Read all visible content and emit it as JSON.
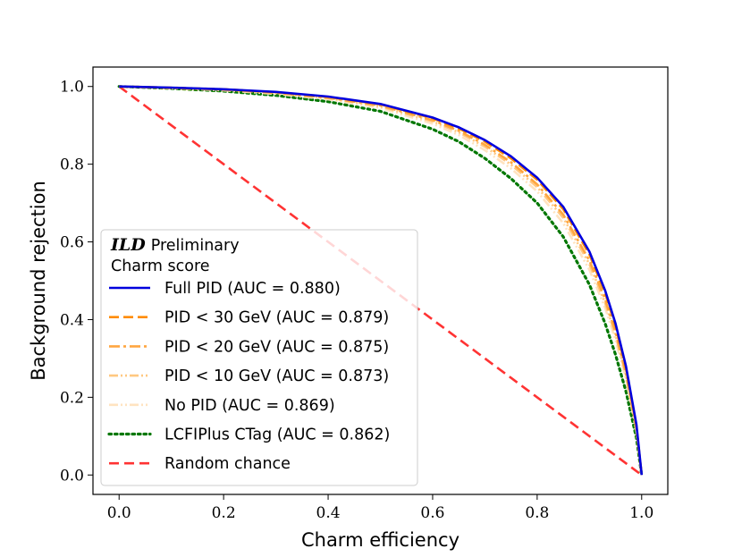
{
  "chart_data": {
    "type": "line",
    "xlabel": "Charm efficiency",
    "ylabel": "Background rejection",
    "xlim": [
      -0.05,
      1.05
    ],
    "ylim": [
      -0.05,
      1.05
    ],
    "xticks": [
      "0.0",
      "0.2",
      "0.4",
      "0.6",
      "0.8",
      "1.0"
    ],
    "yticks": [
      "0.0",
      "0.2",
      "0.4",
      "0.6",
      "0.8",
      "1.0"
    ],
    "legend": {
      "position": "lower-left",
      "title_main": "ILD",
      "title_suffix": "Preliminary",
      "subtitle": "Charm score"
    },
    "x": [
      0.0,
      0.1,
      0.2,
      0.3,
      0.4,
      0.5,
      0.6,
      0.65,
      0.7,
      0.75,
      0.8,
      0.85,
      0.9,
      0.93,
      0.95,
      0.97,
      0.99,
      1.0
    ],
    "series": [
      {
        "name": "Full PID (AUC = 0.880)",
        "color": "#0000dd",
        "style": "solid",
        "y": [
          1.0,
          0.997,
          0.993,
          0.986,
          0.974,
          0.955,
          0.92,
          0.895,
          0.862,
          0.82,
          0.765,
          0.69,
          0.575,
          0.475,
          0.39,
          0.28,
          0.13,
          0.0
        ]
      },
      {
        "name": "PID < 30 GeV (AUC = 0.879)",
        "color": "#ff8c00",
        "style": "dashed",
        "y": [
          1.0,
          0.997,
          0.993,
          0.985,
          0.973,
          0.954,
          0.918,
          0.892,
          0.858,
          0.815,
          0.76,
          0.684,
          0.568,
          0.468,
          0.383,
          0.273,
          0.125,
          0.0
        ]
      },
      {
        "name": "PID < 20 GeV (AUC = 0.875)",
        "color": "#ffa640",
        "style": "dashdot",
        "y": [
          1.0,
          0.996,
          0.992,
          0.984,
          0.971,
          0.951,
          0.913,
          0.886,
          0.85,
          0.805,
          0.748,
          0.67,
          0.552,
          0.452,
          0.368,
          0.262,
          0.12,
          0.0
        ]
      },
      {
        "name": "PID < 10 GeV (AUC = 0.873)",
        "color": "#ffc880",
        "style": "dashdotdot",
        "y": [
          1.0,
          0.996,
          0.991,
          0.983,
          0.97,
          0.949,
          0.91,
          0.882,
          0.845,
          0.799,
          0.741,
          0.662,
          0.543,
          0.443,
          0.36,
          0.256,
          0.117,
          0.0
        ]
      },
      {
        "name": "No PID (AUC = 0.869)",
        "color": "#ffe3c0",
        "style": "dashdotdot",
        "y": [
          1.0,
          0.996,
          0.99,
          0.981,
          0.967,
          0.945,
          0.904,
          0.875,
          0.836,
          0.789,
          0.73,
          0.648,
          0.528,
          0.43,
          0.348,
          0.247,
          0.112,
          0.0
        ]
      },
      {
        "name": "LCFIPlus CTag (AUC = 0.862)",
        "color": "#007700",
        "style": "dotted",
        "y": [
          1.0,
          0.995,
          0.988,
          0.977,
          0.961,
          0.936,
          0.89,
          0.858,
          0.815,
          0.763,
          0.7,
          0.613,
          0.49,
          0.39,
          0.31,
          0.215,
          0.095,
          0.0
        ]
      },
      {
        "name": "Random chance",
        "color": "#ff3333",
        "style": "dashed-red",
        "y": [
          1.0,
          0.9,
          0.8,
          0.7,
          0.6,
          0.5,
          0.4,
          0.35,
          0.3,
          0.25,
          0.2,
          0.15,
          0.1,
          0.07,
          0.05,
          0.03,
          0.01,
          0.0
        ]
      }
    ]
  }
}
